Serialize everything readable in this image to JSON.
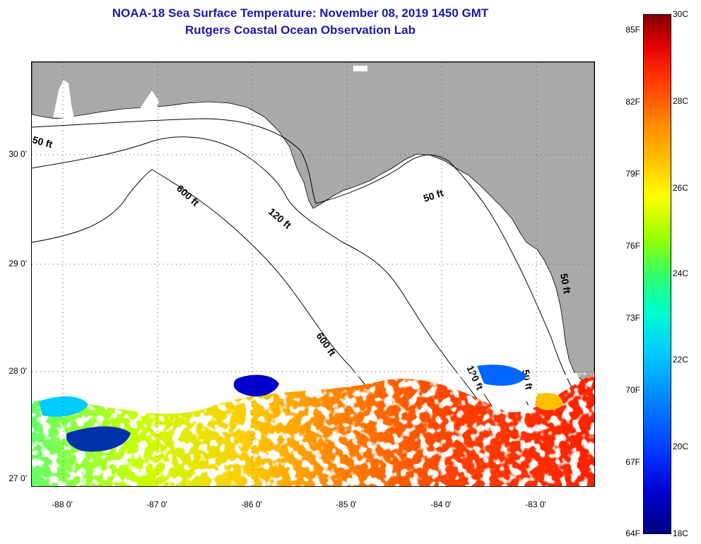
{
  "title": {
    "line1": "NOAA-18 Sea Surface Temperature:  November 08, 2019 1450 GMT",
    "line2": "Rutgers Coastal Ocean Observation Lab"
  },
  "map": {
    "latitude_labels": [
      "30 0'",
      "29 0'",
      "28 0'",
      "27 0'"
    ],
    "longitude_labels": [
      "-88 0'",
      "-87 0'",
      "-86 0'",
      "-85 0'",
      "-84 0'",
      "-83 0'"
    ],
    "contour_labels": [
      "50 ft",
      "600 ft",
      "120 ft",
      "50 ft",
      "600 ft",
      "120 ft",
      "50 ft",
      "50 ft"
    ],
    "colors": {
      "land": "#a9a9a9",
      "ocean_nodata": "#ffffff",
      "contour": "#000000"
    }
  },
  "colorbar": {
    "fahrenheit_labels": [
      "85F",
      "82F",
      "79F",
      "76F",
      "73F",
      "70F",
      "67F",
      "64F"
    ],
    "celsius_labels": [
      "30C",
      "28C",
      "26C",
      "24C",
      "22C",
      "20C",
      "18C"
    ],
    "range_celsius": [
      18,
      30
    ],
    "range_fahrenheit": [
      64,
      86
    ]
  }
}
